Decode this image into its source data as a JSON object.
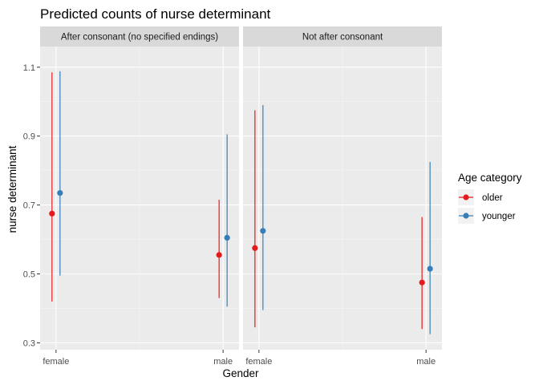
{
  "chart_data": {
    "type": "scatter",
    "title": "Predicted counts of nurse determinant",
    "xlabel": "Gender",
    "ylabel": "nurse determinant",
    "categories": [
      "female",
      "male"
    ],
    "yticks": [
      0.3,
      0.5,
      0.7,
      0.9,
      1.1
    ],
    "ylim": [
      0.28,
      1.16
    ],
    "grid": true,
    "panels": [
      {
        "label": "After consonant (no specified endings)",
        "series": [
          {
            "name": "older",
            "color": "#e41a1c",
            "points": [
              {
                "x": "female",
                "y": 0.675,
                "lower": 0.42,
                "upper": 1.085
              },
              {
                "x": "male",
                "y": 0.555,
                "lower": 0.43,
                "upper": 0.715
              }
            ]
          },
          {
            "name": "younger",
            "color": "#377eb8",
            "points": [
              {
                "x": "female",
                "y": 0.735,
                "lower": 0.495,
                "upper": 1.088
              },
              {
                "x": "male",
                "y": 0.605,
                "lower": 0.405,
                "upper": 0.905
              }
            ]
          }
        ]
      },
      {
        "label": "Not after consonant",
        "series": [
          {
            "name": "older",
            "color": "#e41a1c",
            "points": [
              {
                "x": "female",
                "y": 0.575,
                "lower": 0.345,
                "upper": 0.975
              },
              {
                "x": "male",
                "y": 0.475,
                "lower": 0.34,
                "upper": 0.665
              }
            ]
          },
          {
            "name": "younger",
            "color": "#377eb8",
            "points": [
              {
                "x": "female",
                "y": 0.625,
                "lower": 0.395,
                "upper": 0.99
              },
              {
                "x": "male",
                "y": 0.515,
                "lower": 0.325,
                "upper": 0.825
              }
            ]
          }
        ]
      }
    ],
    "legend": {
      "title": "Age category",
      "placement": "right",
      "entries": [
        "older",
        "younger"
      ]
    }
  }
}
